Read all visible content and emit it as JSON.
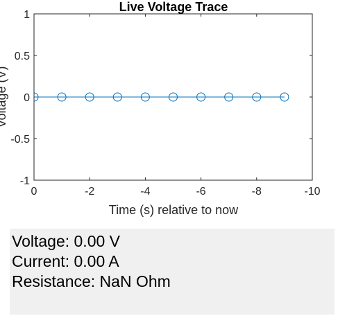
{
  "window": {
    "title": "Live Voltage Trace"
  },
  "chart_data": {
    "type": "line",
    "title": "Live Voltage Trace",
    "xlabel": "Time (s) relative to now",
    "ylabel": "Voltage (V)",
    "x_reversed": true,
    "xlim": [
      0,
      -10
    ],
    "ylim": [
      -1,
      1
    ],
    "x_ticks": [
      0,
      -2,
      -4,
      -6,
      -8,
      -10
    ],
    "y_ticks": [
      -1,
      -0.5,
      0,
      0.5,
      1
    ],
    "x_tick_labels": [
      "0",
      "-2",
      "-4",
      "-6",
      "-8",
      "-10"
    ],
    "y_tick_labels": [
      "-1",
      "-0.5",
      "0",
      "0.5",
      "1"
    ],
    "grid": false,
    "series": [
      {
        "marker": "circle",
        "color": "#0072bd",
        "x": [
          0,
          -1,
          -2,
          -3,
          -4,
          -5,
          -6,
          -7,
          -8,
          -9
        ],
        "y": [
          0,
          0,
          0,
          0,
          0,
          0,
          0,
          0,
          0,
          0
        ]
      }
    ]
  },
  "readout": {
    "voltage": "Voltage: 0.00 V",
    "current": "Current: 0.00 A",
    "resistance": "Resistance: NaN Ohm"
  }
}
